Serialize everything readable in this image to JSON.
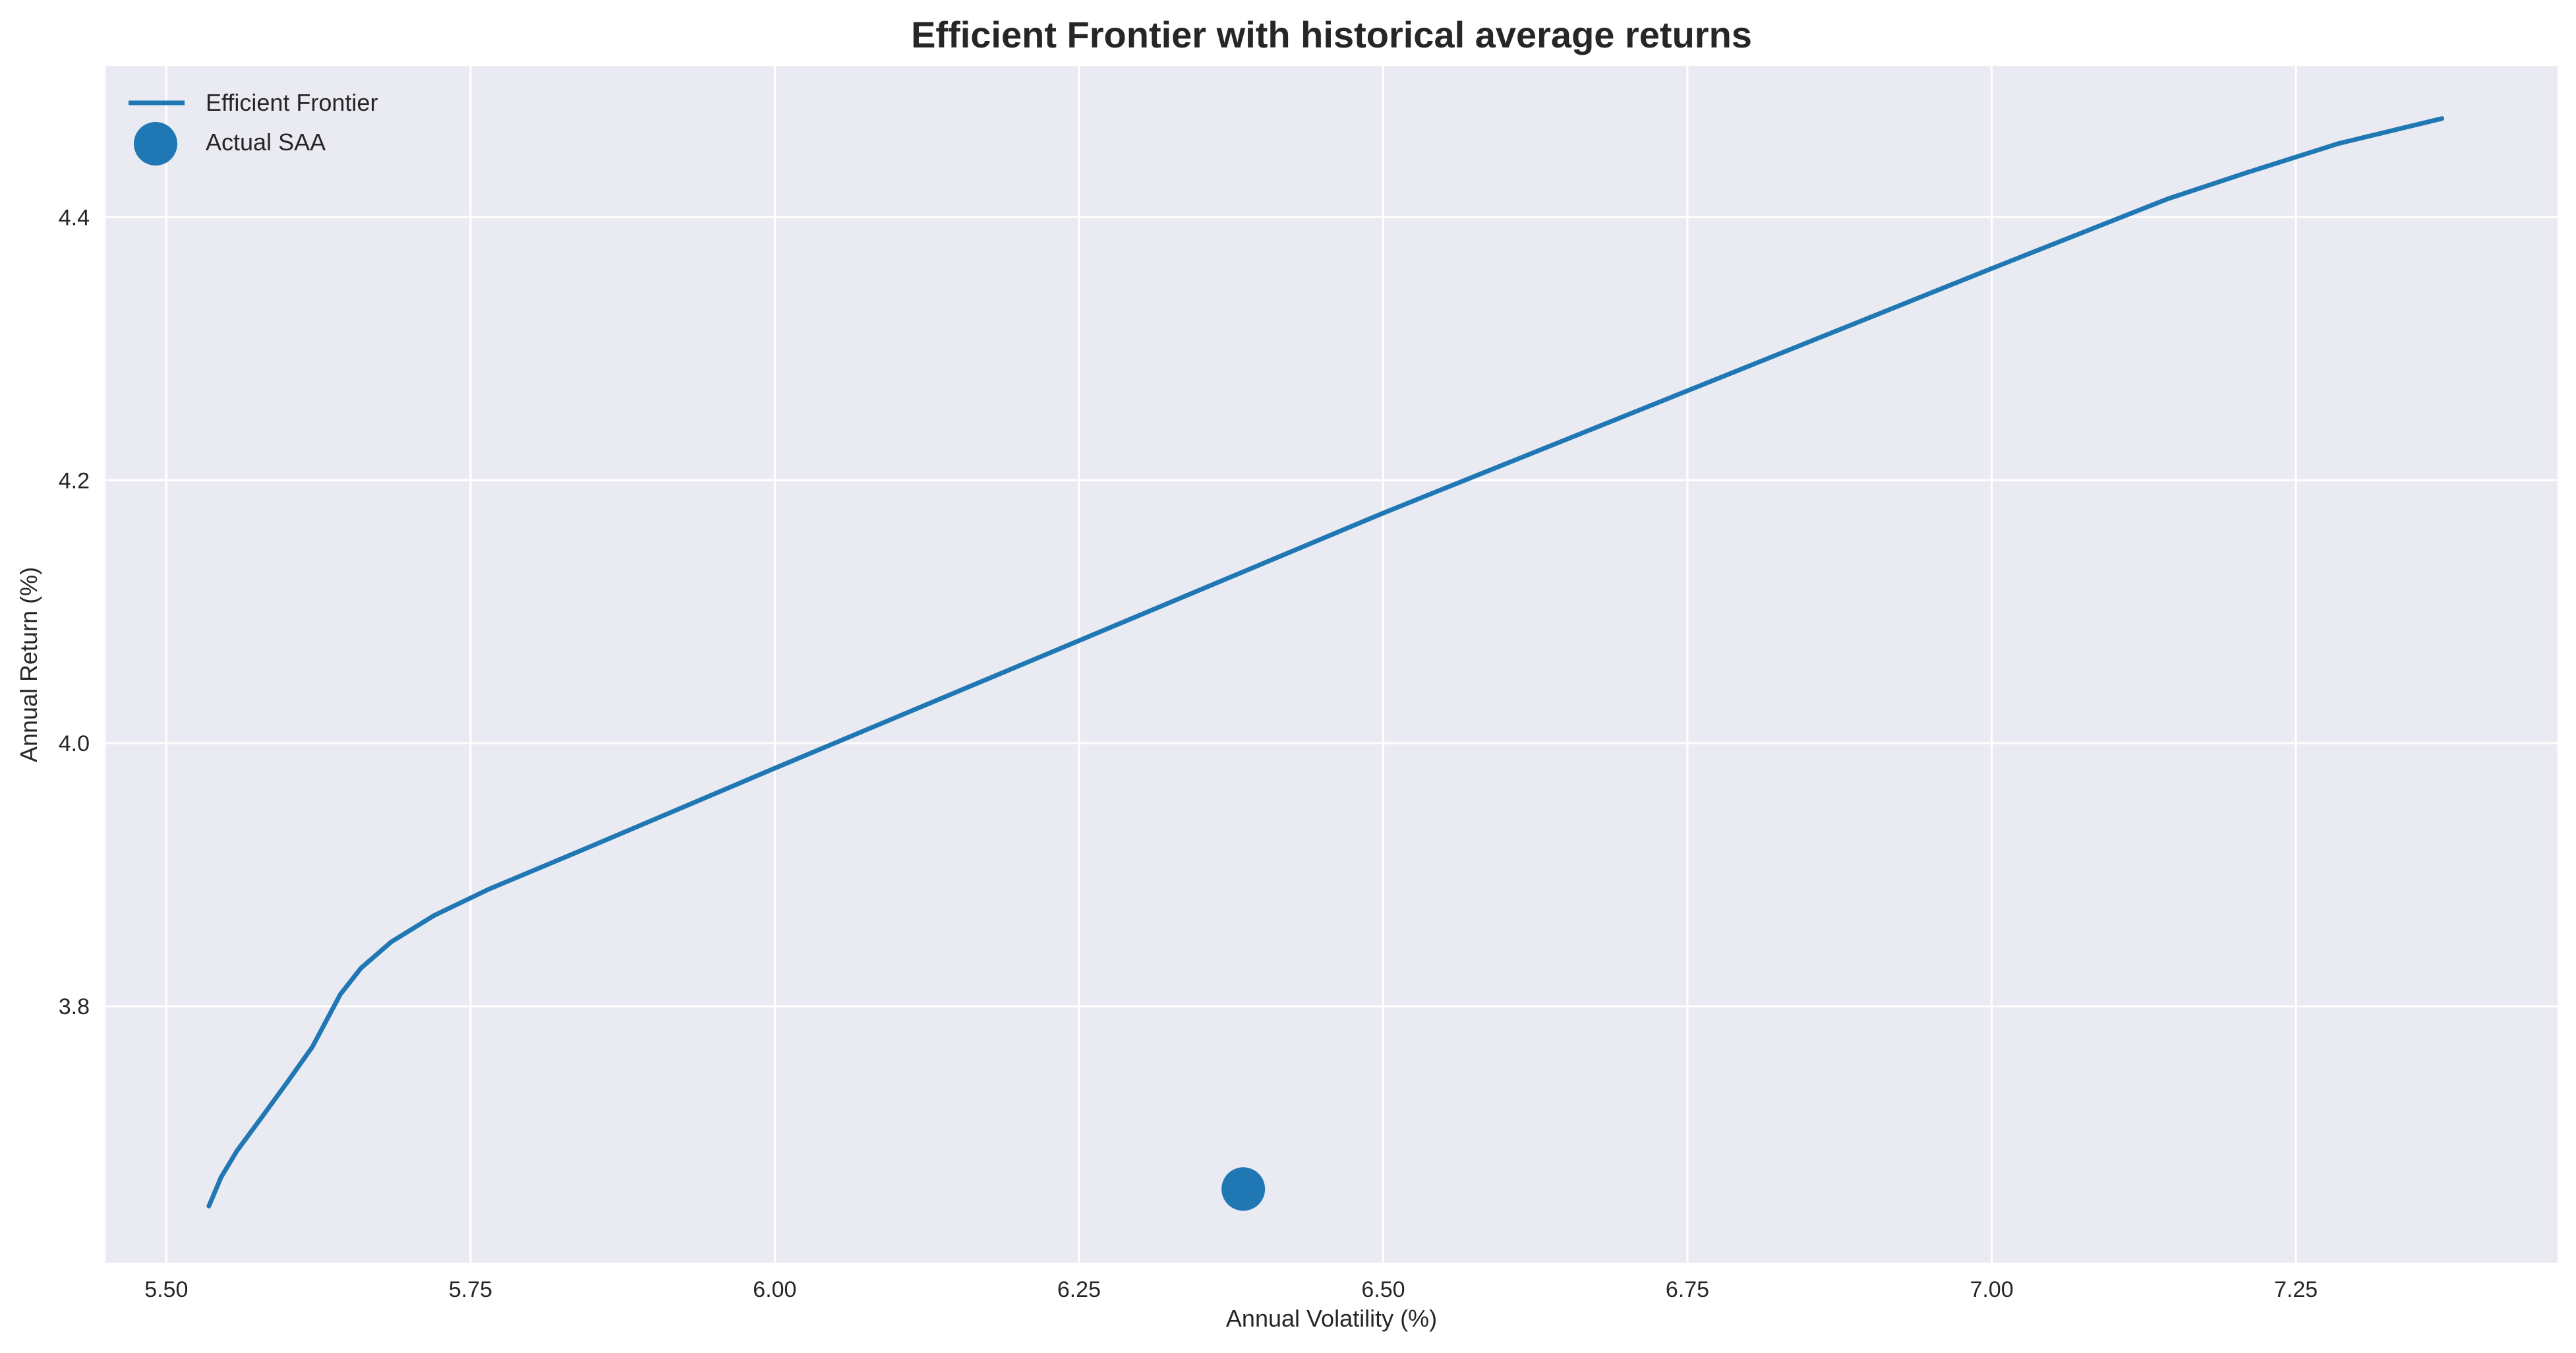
{
  "chart_data": {
    "type": "line",
    "title": "Efficient Frontier with historical average returns",
    "xlabel": "Annual Volatility (%)",
    "ylabel": "Annual Return (%)",
    "xlim": [
      5.45,
      7.465
    ],
    "ylim": [
      3.605,
      4.515
    ],
    "xticks": [
      5.5,
      5.75,
      6.0,
      6.25,
      6.5,
      6.75,
      7.0,
      7.25
    ],
    "xtick_labels": [
      "5.50",
      "5.75",
      "6.00",
      "6.25",
      "6.50",
      "6.75",
      "7.00",
      "7.25"
    ],
    "yticks": [
      3.8,
      4.0,
      4.2,
      4.4
    ],
    "ytick_labels": [
      "3.8",
      "4.0",
      "4.2",
      "4.4"
    ],
    "grid": true,
    "legend_position": "top-left",
    "series": [
      {
        "name": "Efficient Frontier",
        "kind": "line",
        "color": "#1f77b4",
        "x": [
          5.535,
          5.545,
          5.558,
          5.578,
          5.6,
          5.62,
          5.643,
          5.66,
          5.685,
          5.72,
          5.765,
          5.85,
          6.0,
          6.25,
          6.5,
          6.75,
          7.0,
          7.145,
          7.21,
          7.285,
          7.37
        ],
        "y": [
          3.648,
          3.67,
          3.69,
          3.715,
          3.743,
          3.769,
          3.809,
          3.829,
          3.849,
          3.869,
          3.889,
          3.922,
          3.981,
          4.078,
          4.175,
          4.268,
          4.361,
          4.414,
          4.434,
          4.456,
          4.475
        ]
      },
      {
        "name": "Actual SAA",
        "kind": "scatter",
        "color": "#1f77b4",
        "x": [
          6.385
        ],
        "y": [
          3.661
        ]
      }
    ]
  }
}
